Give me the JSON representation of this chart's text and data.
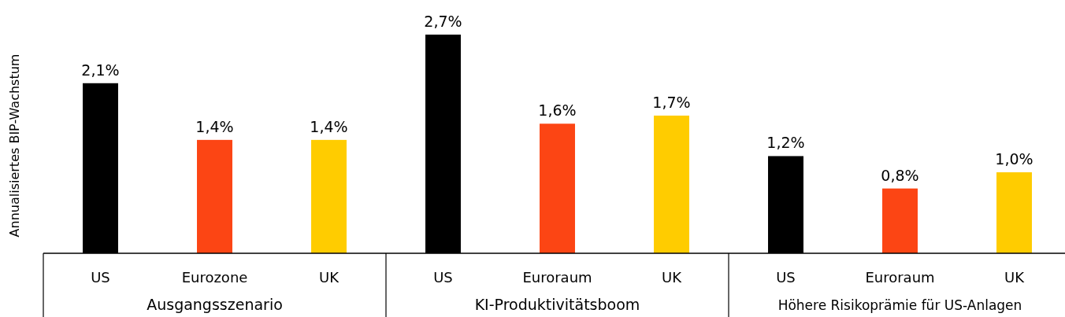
{
  "chart_data": {
    "type": "bar",
    "ylabel": "Annualisiertes BIP-Wachstum",
    "categories": [
      "US",
      "Eurozone",
      "UK",
      "US",
      "Euroraum",
      "UK",
      "US",
      "Euroraum",
      "UK"
    ],
    "values": [
      2.1,
      1.4,
      1.4,
      2.7,
      1.6,
      1.7,
      1.2,
      0.8,
      1.0
    ],
    "colors": [
      "#000000",
      "#fc4514",
      "#ffcc00",
      "#000000",
      "#fc4514",
      "#ffcc00",
      "#000000",
      "#fc4514",
      "#ffcc00"
    ],
    "value_labels": [
      "2,1%",
      "1,4%",
      "1,4%",
      "2,7%",
      "1,6%",
      "1,7%",
      "1,2%",
      "0,8%",
      "1,0%"
    ],
    "annotations": [
      "Ausgangsszenario",
      "KI-Produktivitätsboom",
      "Höhere Risikoprämie für US-Anlagen"
    ]
  }
}
